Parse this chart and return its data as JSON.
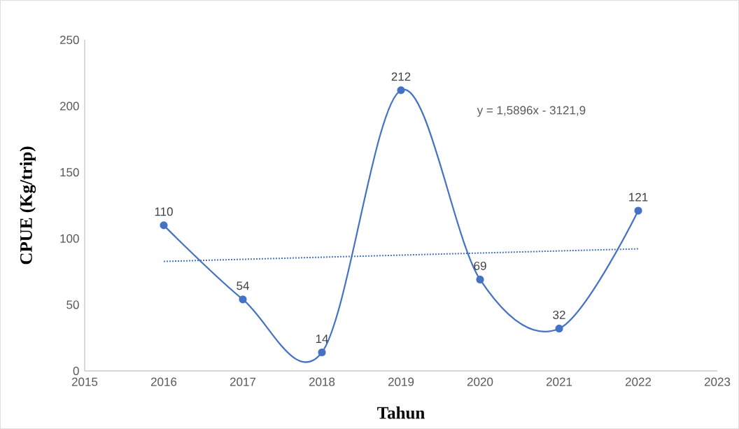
{
  "chart_data": {
    "type": "line",
    "xlabel": "Tahun",
    "ylabel": "CPUE (Kg/trip)",
    "x": [
      2016,
      2017,
      2018,
      2019,
      2020,
      2021,
      2022
    ],
    "series": [
      {
        "color": "#4472c4",
        "values": [
          110,
          54,
          14,
          212,
          69,
          32,
          121
        ],
        "marker": "circle",
        "line_style": "solid",
        "data_labels": true
      },
      {
        "type": "line",
        "color": "#4472c4",
        "x": [
          2016,
          2022
        ],
        "values": [
          82.7,
          92.2
        ],
        "marker": "none",
        "line_style": "dotted"
      }
    ],
    "annotations": [
      "y = 1,5896x - 3121,9"
    ],
    "xlim": [
      2015,
      2023
    ],
    "xticks": [
      2015,
      2016,
      2017,
      2018,
      2019,
      2020,
      2021,
      2022,
      2023
    ],
    "ylim": [
      0,
      250
    ],
    "yticks": [
      0,
      50,
      100,
      150,
      200,
      250
    ],
    "grid": false,
    "legend": false
  }
}
